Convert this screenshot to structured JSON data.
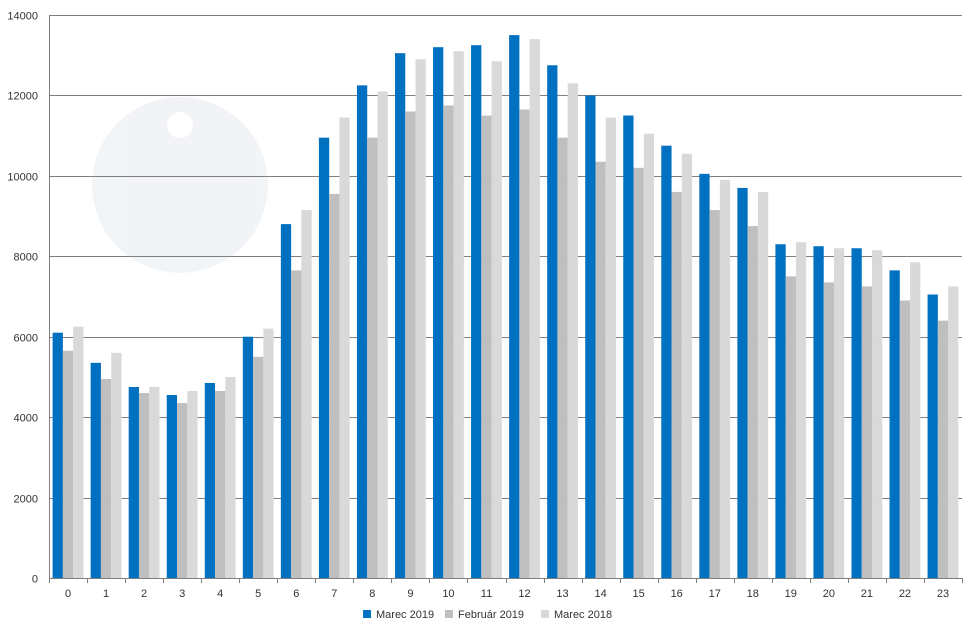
{
  "chart_data": {
    "type": "bar",
    "title": "",
    "xlabel": "",
    "ylabel": "",
    "ylim": [
      0,
      14000
    ],
    "yticks": [
      0,
      2000,
      4000,
      6000,
      8000,
      10000,
      12000,
      14000
    ],
    "grid": true,
    "legend_position": "bottom",
    "categories": [
      "0",
      "1",
      "2",
      "3",
      "4",
      "5",
      "6",
      "7",
      "8",
      "9",
      "10",
      "11",
      "12",
      "13",
      "14",
      "15",
      "16",
      "17",
      "18",
      "19",
      "20",
      "21",
      "22",
      "23"
    ],
    "series": [
      {
        "name": "Marec 2019",
        "color": "#0070c0",
        "values": [
          6100,
          5350,
          4750,
          4550,
          4850,
          6000,
          8800,
          10950,
          12250,
          13050,
          13200,
          13250,
          13500,
          12750,
          12000,
          11500,
          10750,
          10050,
          9700,
          8300,
          8250,
          8200,
          7650,
          7050
        ]
      },
      {
        "name": "Február 2019",
        "color": "#bfbfbf",
        "values": [
          5650,
          4950,
          4600,
          4350,
          4650,
          5500,
          7650,
          9550,
          10950,
          11600,
          11750,
          11500,
          11650,
          10950,
          10350,
          10200,
          9600,
          9150,
          8750,
          7500,
          7350,
          7250,
          6900,
          6400
        ]
      },
      {
        "name": "Marec 2018",
        "color": "#d9d9d9",
        "values": [
          6250,
          5600,
          4750,
          4650,
          5000,
          6200,
          9150,
          11450,
          12100,
          12900,
          13100,
          12850,
          13400,
          12300,
          11450,
          11050,
          10550,
          9900,
          9600,
          8350,
          8200,
          8150,
          7850,
          7250
        ]
      }
    ]
  }
}
